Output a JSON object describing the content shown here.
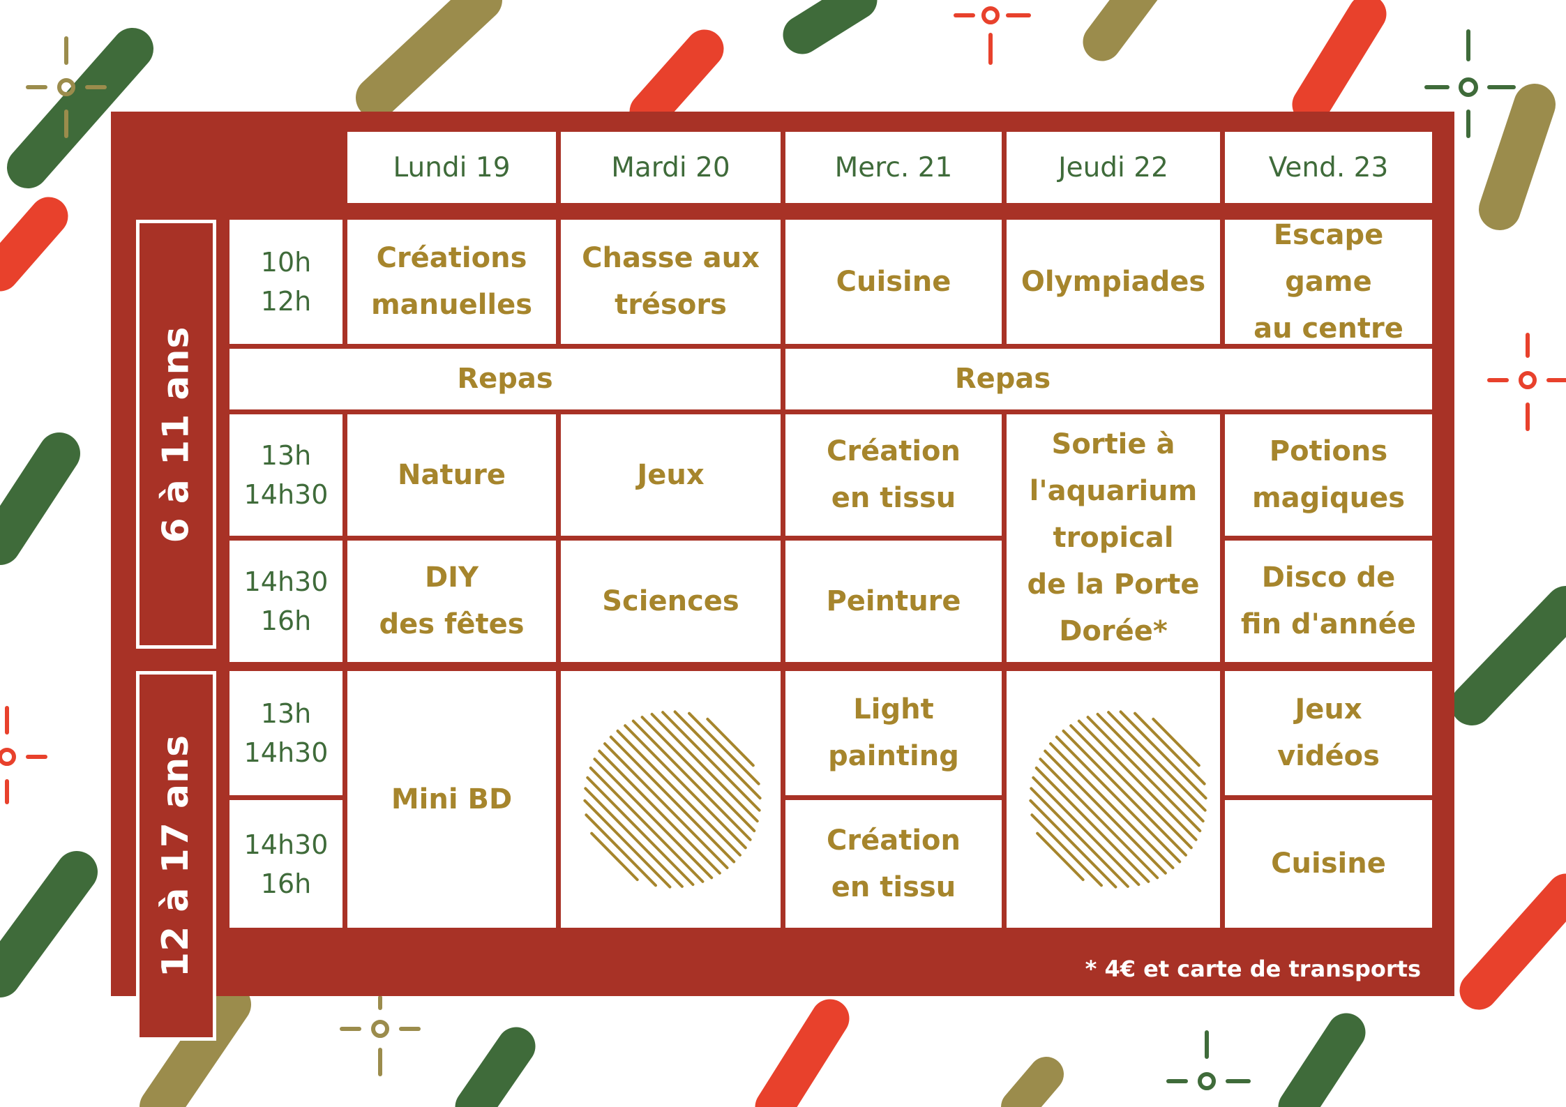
{
  "colors": {
    "card": "#a83226",
    "green": "#3f6b3a",
    "gold": "#a6852c",
    "red": "#e8412c",
    "olive": "#9b8c4c",
    "white": "#ffffff"
  },
  "days": [
    "Lundi 19",
    "Mardi 20",
    "Merc. 21",
    "Jeudi 22",
    "Vend. 23"
  ],
  "groups": {
    "young": "6 à 11 ans",
    "teen": "12 à 17 ans"
  },
  "times": {
    "young_morning": [
      "10h",
      "12h"
    ],
    "young_slot1": [
      "13h",
      "14h30"
    ],
    "young_slot2": [
      "14h30",
      "16h"
    ],
    "teen_slot1": [
      "13h",
      "14h30"
    ],
    "teen_slot2": [
      "14h30",
      "16h"
    ]
  },
  "young": {
    "morning": [
      [
        "Créations",
        "manuelles"
      ],
      [
        "Chasse aux",
        "trésors"
      ],
      [
        "Cuisine"
      ],
      [
        "Olympiades"
      ],
      [
        "Escape game",
        "au centre"
      ]
    ],
    "lunch": [
      "Repas",
      "Repas"
    ],
    "slot1": [
      [
        "Nature"
      ],
      [
        "Jeux"
      ],
      [
        "Création",
        "en tissu"
      ],
      [
        "Potions",
        "magiques"
      ]
    ],
    "thursday_outing": [
      "Sortie à",
      "l'aquarium",
      "tropical",
      "de la Porte",
      "Dorée*"
    ],
    "slot2": [
      [
        "DIY",
        "des fêtes"
      ],
      [
        "Sciences"
      ],
      [
        "Peinture"
      ],
      [
        "Disco de",
        "fin d'année"
      ]
    ]
  },
  "teen": {
    "monday": [
      "Mini BD"
    ],
    "wednesday_slot1": [
      "Light",
      "painting"
    ],
    "wednesday_slot2": [
      "Création",
      "en tissu"
    ],
    "friday_slot1": [
      "Jeux",
      "vidéos"
    ],
    "friday_slot2": [
      "Cuisine"
    ]
  },
  "footnote": "* 4€ et carte de transports"
}
